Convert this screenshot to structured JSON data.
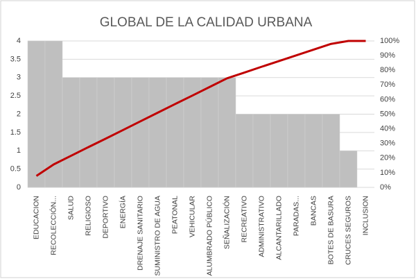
{
  "chart_data": {
    "type": "pareto",
    "title": "GLOBAL DE LA CALIDAD URBANA",
    "categories": [
      "EDUCACION",
      "RECOLECCIÓN...",
      "SALUD",
      "RELIGIOSO",
      "DEPORTIVO",
      "ENERGÍA",
      "DRENAJE SANITARIO",
      "SUMINISTRO DE AGUA",
      "PEATONAL",
      "VEHICULAR",
      "ALUMBRADO PÚBLICO",
      "SEÑALIZACIÓN",
      "RECREATIVO",
      "ADMINISTRATIVO",
      "ALCANTARILLADO",
      "PARADAS...",
      "BANCAS",
      "BOTES DE  BASURA",
      "CRUCES SEGUROS",
      "INCLUSION"
    ],
    "series": [
      {
        "color": "#bfbfbf",
        "values": [
          4,
          4,
          3,
          3,
          3,
          3,
          3,
          3,
          3,
          3,
          3,
          3,
          2,
          2,
          2,
          2,
          2,
          2,
          1,
          0
        ]
      },
      {
        "color": "#c00000",
        "axis": "y2",
        "values": [
          7.8,
          15.7,
          21.6,
          27.5,
          33.3,
          39.2,
          45.1,
          51.0,
          56.9,
          62.7,
          68.6,
          74.5,
          78.4,
          82.4,
          86.3,
          90.2,
          94.1,
          98.0,
          100,
          100
        ]
      }
    ],
    "ylim": [
      0,
      4
    ],
    "yticks": [
      0,
      0.5,
      1,
      1.5,
      2,
      2.5,
      3,
      3.5,
      4
    ],
    "y2lim": [
      0,
      100
    ],
    "y2ticks": [
      {
        "value": 0,
        "label": "0%"
      },
      {
        "value": 10,
        "label": "10%"
      },
      {
        "value": 20,
        "label": "20%"
      },
      {
        "value": 30,
        "label": "30%"
      },
      {
        "value": 40,
        "label": "40%"
      },
      {
        "value": 50,
        "label": "50%"
      },
      {
        "value": 60,
        "label": "60%"
      },
      {
        "value": 70,
        "label": "70%"
      },
      {
        "value": 80,
        "label": "80%"
      },
      {
        "value": 90,
        "label": "90%"
      },
      {
        "value": 100,
        "label": "100%"
      }
    ],
    "grid": true
  }
}
